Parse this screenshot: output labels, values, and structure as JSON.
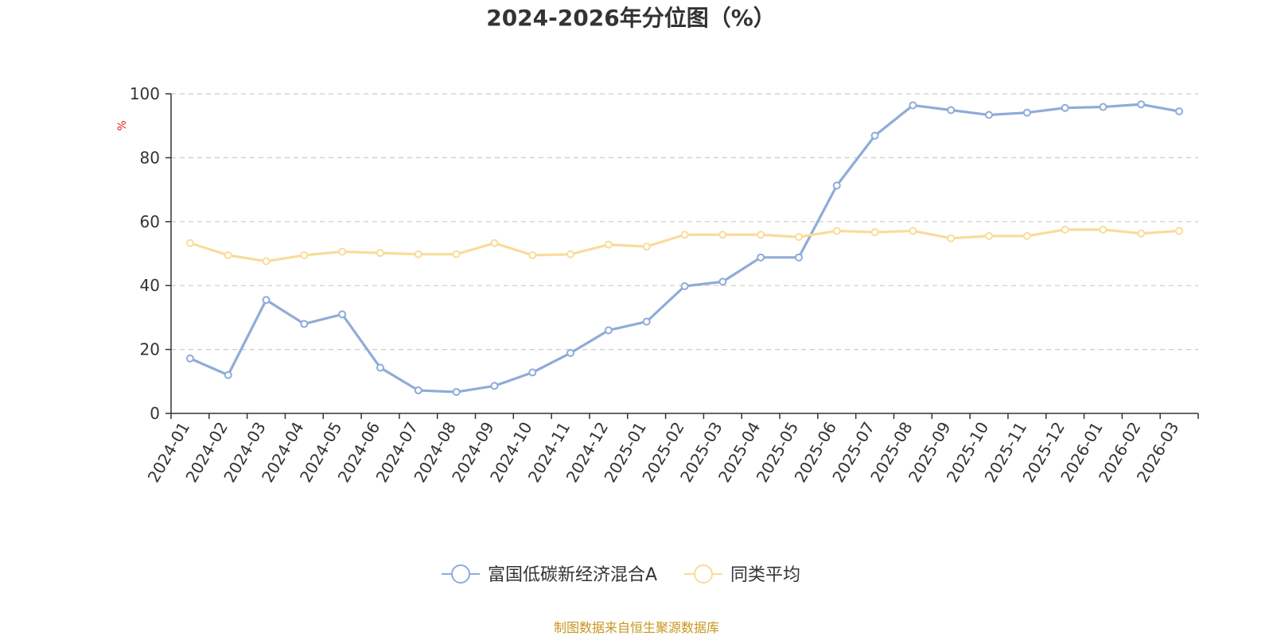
{
  "chart_data": {
    "type": "line",
    "title": "2024-2026年分位图（%）",
    "xlabel": "",
    "ylabel": "%",
    "ylim": [
      0,
      100
    ],
    "yticks": [
      0,
      20,
      40,
      60,
      80,
      100
    ],
    "grid": true,
    "legend_placement": "bottom-center",
    "categories": [
      "2024-01",
      "2024-02",
      "2024-03",
      "2024-04",
      "2024-05",
      "2024-06",
      "2024-07",
      "2024-08",
      "2024-09",
      "2024-10",
      "2024-11",
      "2024-12",
      "2025-01",
      "2025-02",
      "2025-03",
      "2025-04",
      "2025-05",
      "2025-06",
      "2025-07",
      "2025-08",
      "2025-09",
      "2025-10",
      "2025-11",
      "2025-12",
      "2026-01",
      "2026-02",
      "2026-03"
    ],
    "series": [
      {
        "name": "富国低碳新经济混合A",
        "color": "#8eacd9",
        "values": [
          17.2,
          12.0,
          35.5,
          28.0,
          31.0,
          14.3,
          7.2,
          6.7,
          8.6,
          12.8,
          18.9,
          26.0,
          28.7,
          39.8,
          41.2,
          48.8,
          48.8,
          71.3,
          86.9,
          96.4,
          94.9,
          93.4,
          94.1,
          95.6,
          95.9,
          96.7,
          94.5
        ]
      },
      {
        "name": "同类平均",
        "color": "#f9dc9b",
        "values": [
          53.3,
          49.5,
          47.6,
          49.5,
          50.6,
          50.2,
          49.8,
          49.8,
          53.3,
          49.5,
          49.8,
          52.8,
          52.2,
          55.9,
          55.9,
          55.9,
          55.2,
          57.1,
          56.7,
          57.1,
          54.8,
          55.5,
          55.5,
          57.5,
          57.5,
          56.3,
          57.1
        ]
      }
    ],
    "source_text": "制图数据来自恒生聚源数据库",
    "source_color": "#c8961e",
    "ylabel_color": "#e02020"
  }
}
